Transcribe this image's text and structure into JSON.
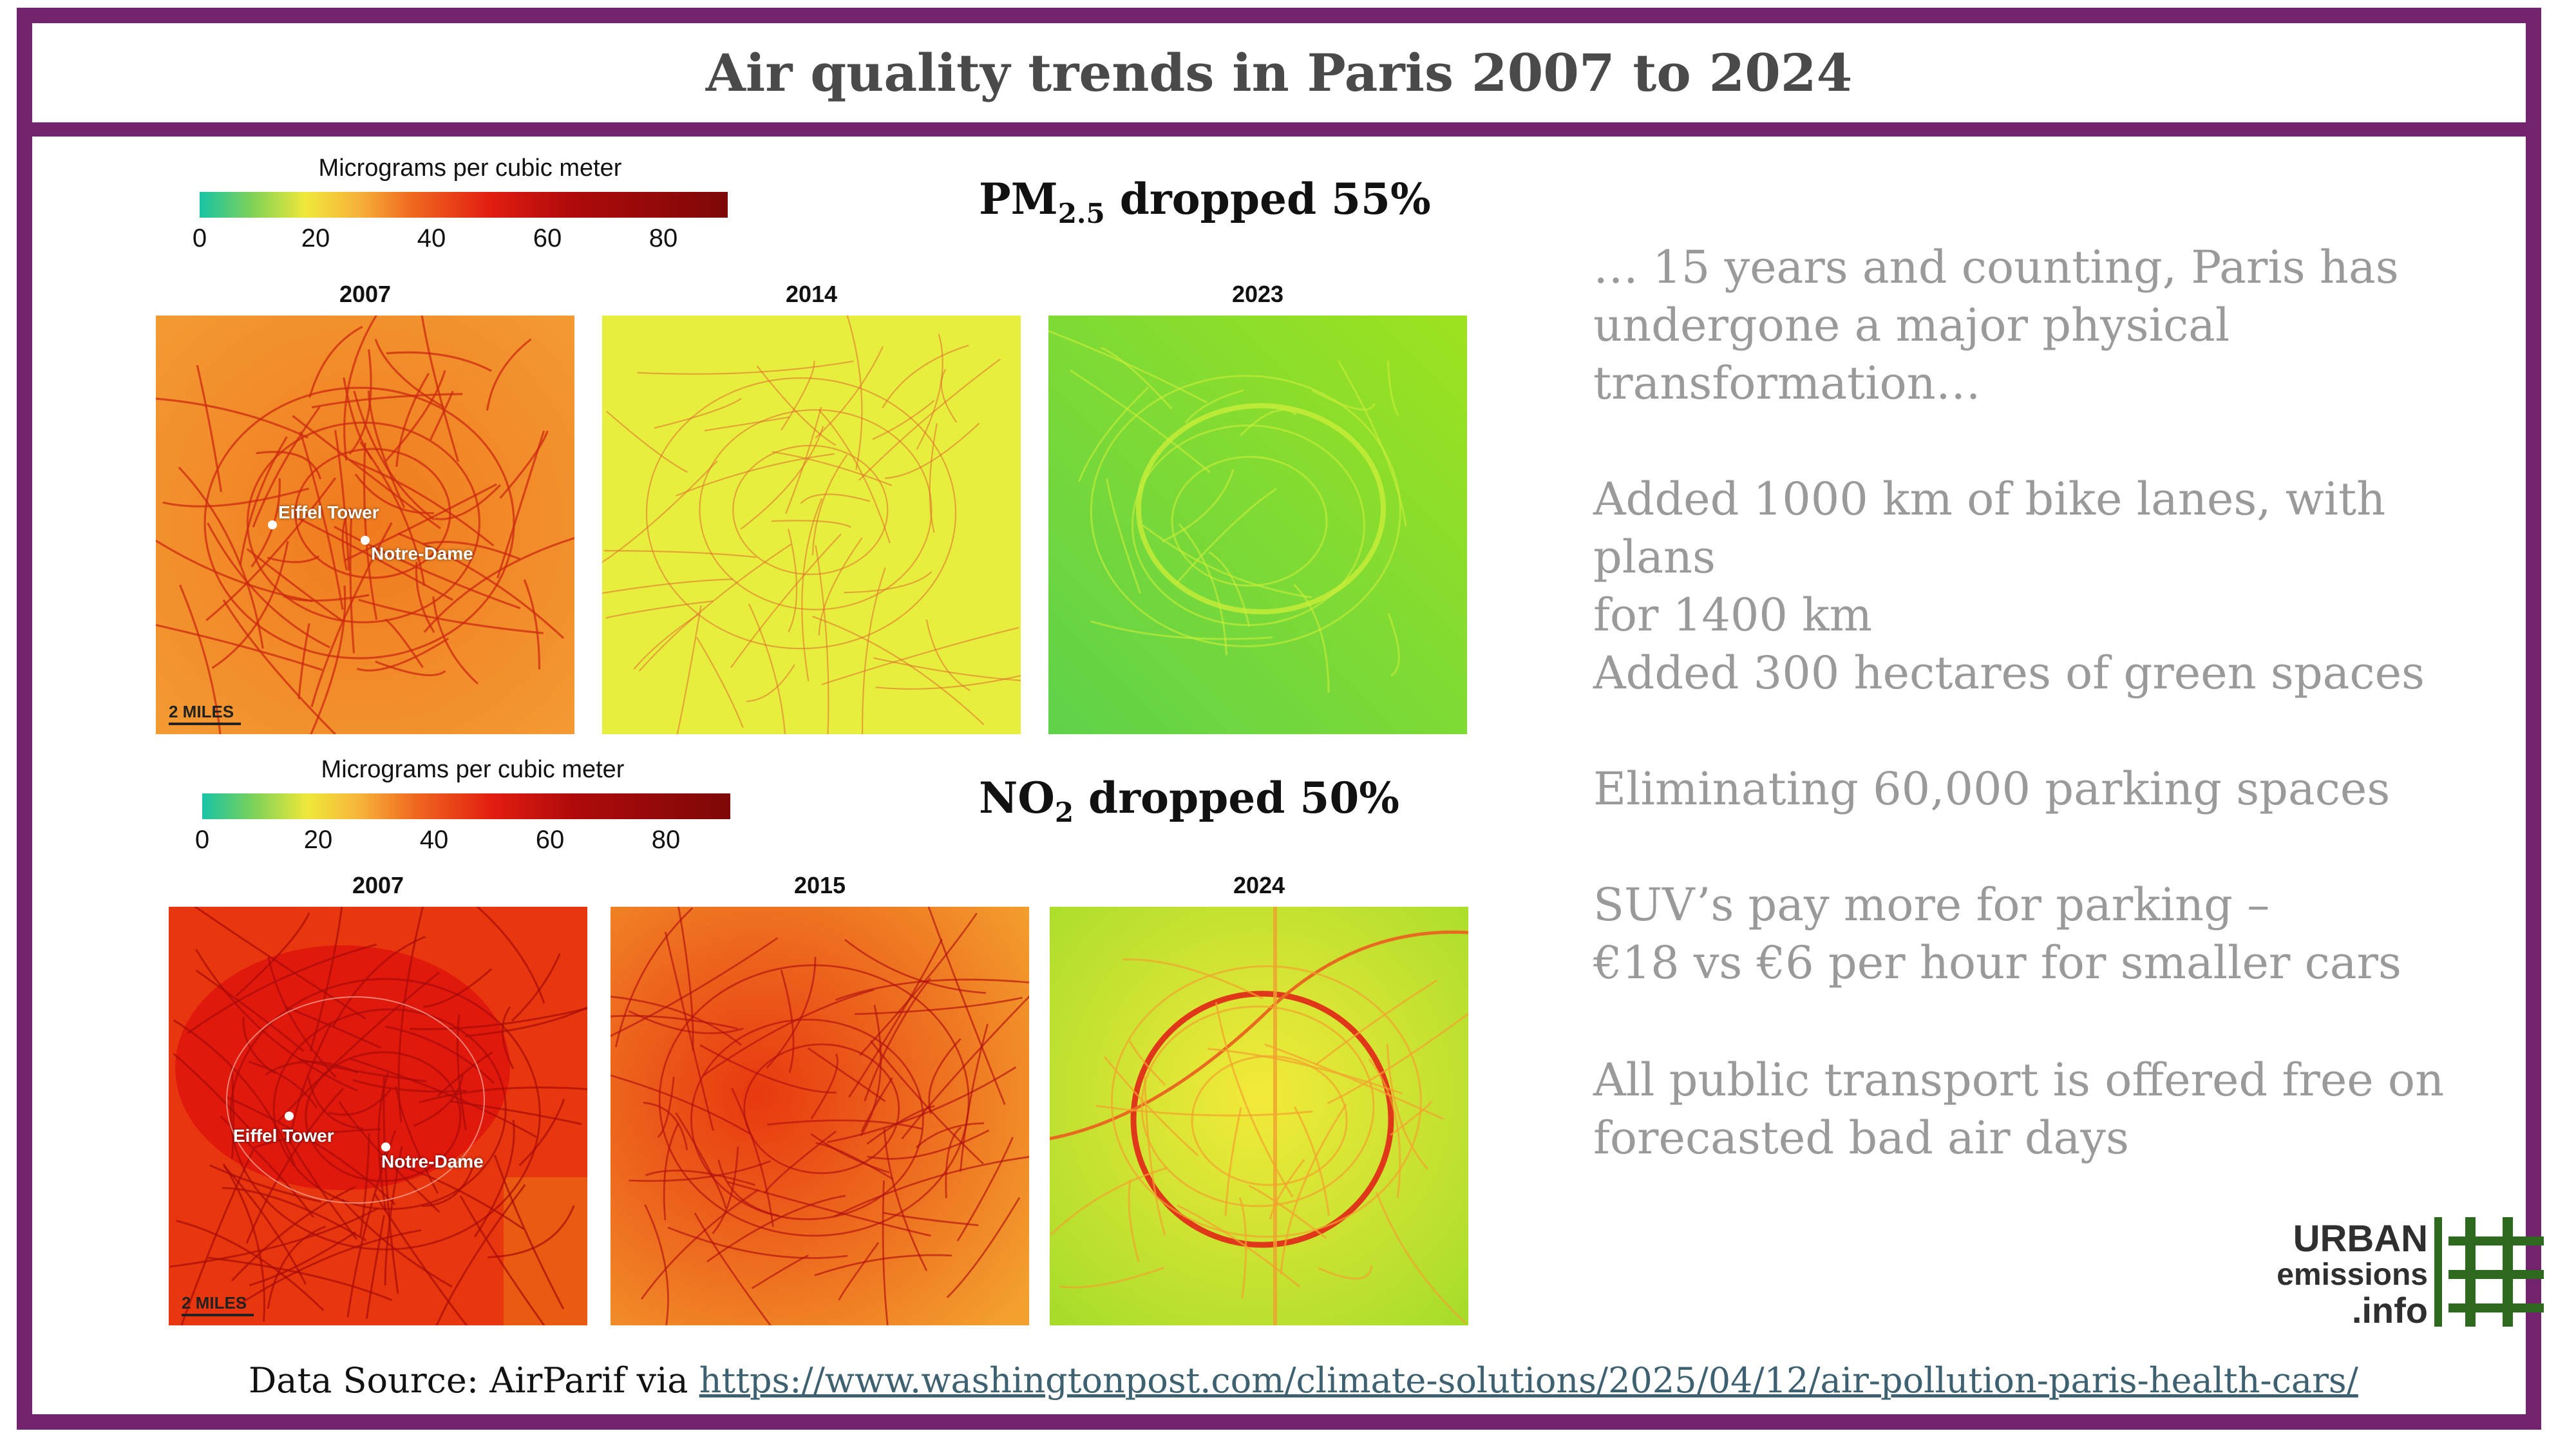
{
  "title": "Air quality trends in Paris 2007 to 2024",
  "colorbar": {
    "title": "Micrograms per cubic meter",
    "ticks": [
      "0",
      "20",
      "40",
      "60",
      "80"
    ]
  },
  "pm": {
    "heading_main": "PM",
    "heading_sub": "2.5",
    "heading_rest": " dropped 55%",
    "years": [
      "2007",
      "2014",
      "2023"
    ]
  },
  "no2": {
    "heading_main": "NO",
    "heading_sub": "2",
    "heading_rest": " dropped 50%",
    "years": [
      "2007",
      "2015",
      "2024"
    ]
  },
  "map_labels": {
    "eiffel": "Eiffel Tower",
    "notre_dame": "Notre-Dame",
    "scale": "2 MILES"
  },
  "bullets": [
    "… 15 years and counting, Paris has\nundergone a major physical\ntransformation…",
    "Added 1000 km of bike lanes, with plans\nfor 1400 km",
    "Added 300 hectares of green spaces",
    "Eliminating 60,000 parking spaces",
    "SUV’s pay more for parking –\n€18 vs €6 per hour for smaller cars",
    "All public transport is offered free on\nforecasted bad air days"
  ],
  "source": {
    "prefix": "Data Source: AirParif via ",
    "url": "https://www.washingtonpost.com/climate-solutions/2025/04/12/air-pollution-paris-health-cars/"
  },
  "logo": {
    "line1": "URBAN",
    "line2": "emissions",
    "line3": ".info"
  },
  "colors": {
    "frame": "#74246e",
    "logo_green": "#2d6a1f"
  }
}
